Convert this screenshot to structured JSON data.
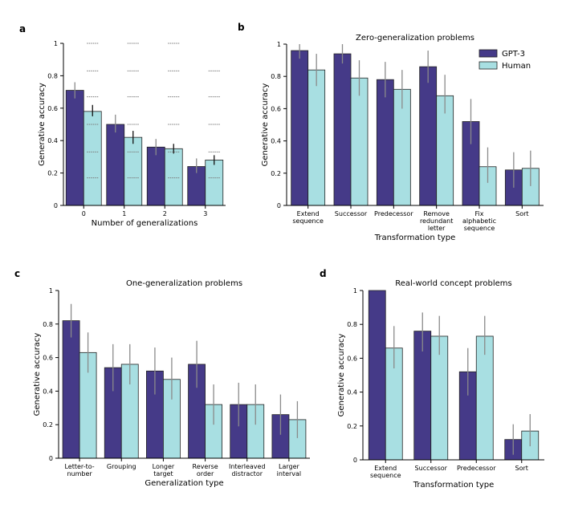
{
  "colors": {
    "gpt3": "#453a88",
    "human": "#a8dfe2",
    "error": "#8a8a8a",
    "error_human_a": "#111111"
  },
  "legend": {
    "gpt3": "GPT-3",
    "human": "Human"
  },
  "chart_data": [
    {
      "panel": "a",
      "type": "bar",
      "title": "",
      "xlabel": "Number of generalizations",
      "ylabel": "Generative accuracy",
      "ylim": [
        0,
        1
      ],
      "yticks": [
        "0",
        "0.2",
        "0.4",
        "0.6",
        "0.8",
        "1"
      ],
      "categories": [
        "0",
        "1",
        "2",
        "3"
      ],
      "series": [
        {
          "name": "GPT-3",
          "values": [
            0.71,
            0.5,
            0.36,
            0.24
          ],
          "err_low": [
            0.66,
            0.45,
            0.31,
            0.2
          ],
          "err_high": [
            0.76,
            0.56,
            0.41,
            0.29
          ]
        },
        {
          "name": "Human",
          "values": [
            0.58,
            0.42,
            0.35,
            0.28
          ],
          "err_low": [
            0.55,
            0.38,
            0.32,
            0.25
          ],
          "err_high": [
            0.62,
            0.46,
            0.38,
            0.31
          ]
        }
      ],
      "individual_points": [
        {
          "category": "0",
          "values": [
            1.0,
            0.83,
            0.67,
            0.5,
            0.33,
            0.17
          ]
        },
        {
          "category": "1",
          "values": [
            1.0,
            0.83,
            0.67,
            0.5,
            0.33,
            0.17
          ]
        },
        {
          "category": "2",
          "values": [
            1.0,
            0.83,
            0.67,
            0.5,
            0.33,
            0.17
          ]
        },
        {
          "category": "3",
          "values": [
            0.83,
            0.67,
            0.5,
            0.33,
            0.17
          ]
        }
      ]
    },
    {
      "panel": "b",
      "type": "bar",
      "title": "Zero-generalization problems",
      "xlabel": "Transformation type",
      "ylabel": "Generative accuracy",
      "ylim": [
        0,
        1
      ],
      "yticks": [
        "0",
        "0.2",
        "0.4",
        "0.6",
        "0.8",
        "1"
      ],
      "legend": "top-right",
      "categories": [
        "Extend\nsequence",
        "Successor",
        "Predecessor",
        "Remove\nredundant\nletter",
        "Fix\nalphabetic\nsequence",
        "Sort"
      ],
      "series": [
        {
          "name": "GPT-3",
          "values": [
            0.96,
            0.94,
            0.78,
            0.86,
            0.52,
            0.22
          ],
          "err_low": [
            0.91,
            0.88,
            0.67,
            0.76,
            0.38,
            0.11
          ],
          "err_high": [
            1.0,
            1.0,
            0.89,
            0.96,
            0.66,
            0.33
          ]
        },
        {
          "name": "Human",
          "values": [
            0.84,
            0.79,
            0.72,
            0.68,
            0.24,
            0.23
          ],
          "err_low": [
            0.74,
            0.68,
            0.6,
            0.57,
            0.14,
            0.12
          ],
          "err_high": [
            0.94,
            0.9,
            0.84,
            0.81,
            0.36,
            0.34
          ]
        }
      ]
    },
    {
      "panel": "c",
      "type": "bar",
      "title": "One-generalization problems",
      "xlabel": "Generalization type",
      "ylabel": "Generative accuracy",
      "ylim": [
        0,
        1
      ],
      "yticks": [
        "0",
        "0.2",
        "0.4",
        "0.6",
        "0.8",
        "1"
      ],
      "categories": [
        "Letter-to-\nnumber",
        "Grouping",
        "Longer\ntarget",
        "Reverse\norder",
        "Interleaved\ndistractor",
        "Larger\ninterval"
      ],
      "series": [
        {
          "name": "GPT-3",
          "values": [
            0.82,
            0.54,
            0.52,
            0.56,
            0.32,
            0.26
          ],
          "err_low": [
            0.72,
            0.4,
            0.38,
            0.42,
            0.19,
            0.14
          ],
          "err_high": [
            0.92,
            0.68,
            0.66,
            0.7,
            0.45,
            0.38
          ]
        },
        {
          "name": "Human",
          "values": [
            0.63,
            0.56,
            0.47,
            0.32,
            0.32,
            0.23
          ],
          "err_low": [
            0.51,
            0.44,
            0.35,
            0.2,
            0.2,
            0.12
          ],
          "err_high": [
            0.75,
            0.68,
            0.6,
            0.44,
            0.44,
            0.34
          ]
        }
      ]
    },
    {
      "panel": "d",
      "type": "bar",
      "title": "Real-world concept problems",
      "xlabel": "Transformation type",
      "ylabel": "Generative accuracy",
      "ylim": [
        0,
        1
      ],
      "yticks": [
        "0",
        "0.2",
        "0.4",
        "0.6",
        "0.8",
        "1"
      ],
      "categories": [
        "Extend\nsequence",
        "Successor",
        "Predecessor",
        "Sort"
      ],
      "series": [
        {
          "name": "GPT-3",
          "values": [
            1.0,
            0.76,
            0.52,
            0.12
          ],
          "err_low": [
            1.0,
            0.64,
            0.38,
            0.03
          ],
          "err_high": [
            1.0,
            0.87,
            0.66,
            0.21
          ]
        },
        {
          "name": "Human",
          "values": [
            0.66,
            0.73,
            0.73,
            0.17
          ],
          "err_low": [
            0.54,
            0.62,
            0.62,
            0.08
          ],
          "err_high": [
            0.79,
            0.85,
            0.85,
            0.27
          ]
        }
      ]
    }
  ]
}
